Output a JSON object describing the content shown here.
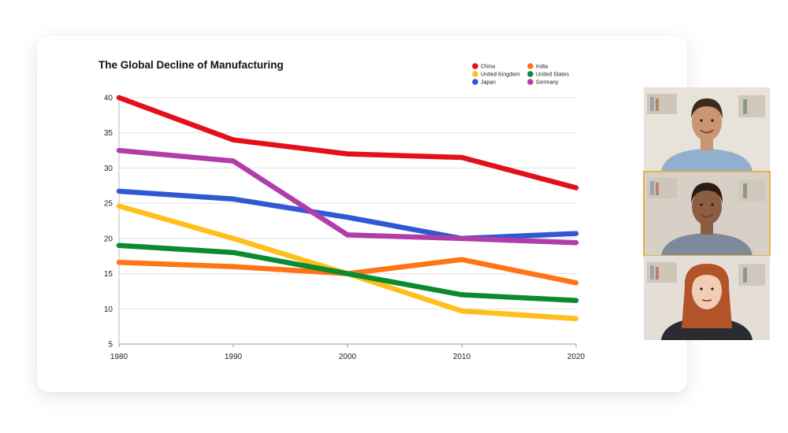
{
  "chart_data": {
    "type": "line",
    "title": "The Global Decline of Manufacturing",
    "xlabel": "",
    "ylabel": "",
    "x": [
      1980,
      1990,
      2000,
      2010,
      2020
    ],
    "xticks": [
      "1980",
      "1990",
      "2000",
      "2010",
      "2020"
    ],
    "yticks": [
      "5",
      "10",
      "15",
      "20",
      "25",
      "30",
      "35",
      "40"
    ],
    "ylim": [
      5,
      40
    ],
    "grid": true,
    "legend_position": "top-right",
    "series": [
      {
        "name": "China",
        "color": "#e3101b",
        "values": [
          40,
          34,
          32,
          31.5,
          27.2
        ]
      },
      {
        "name": "India",
        "color": "#ff7415",
        "values": [
          16.6,
          16,
          15,
          17,
          13.7
        ]
      },
      {
        "name": "United Kingdom",
        "color": "#ffbf1a",
        "values": [
          24.6,
          20,
          15,
          9.7,
          8.6
        ]
      },
      {
        "name": "United States",
        "color": "#0b8a2f",
        "values": [
          19,
          18,
          15,
          12,
          11.2
        ]
      },
      {
        "name": "Japan",
        "color": "#3158d3",
        "values": [
          26.7,
          25.6,
          23,
          20,
          20.7
        ]
      },
      {
        "name": "Germany",
        "color": "#b03ea8",
        "values": [
          32.5,
          31,
          20.5,
          20,
          19.4
        ]
      }
    ]
  },
  "video_call": {
    "participants": [
      {
        "id": "participant-1",
        "skin": "#c99573",
        "hair": "#3b2a1e",
        "shirt": "#8fb0cf",
        "bg": "#e7e2da"
      },
      {
        "id": "participant-2",
        "skin": "#8c5d43",
        "hair": "#2a1c14",
        "shirt": "#7d8a99",
        "bg": "#d8d0c6"
      },
      {
        "id": "participant-3",
        "skin": "#f0cdb5",
        "hair": "#b3532a",
        "shirt": "#2b2b33",
        "bg": "#e4ded6"
      }
    ]
  }
}
